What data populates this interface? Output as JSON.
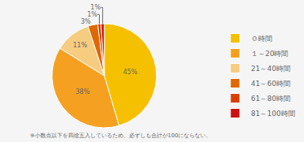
{
  "chart_data": {
    "type": "pie",
    "categories": [
      "０時間",
      "１～20時間",
      "21～40時間",
      "41～60時間",
      "61～80時間",
      "81～100時間"
    ],
    "values": [
      45,
      38,
      11,
      3,
      1,
      1
    ],
    "value_labels": [
      "45%",
      "38%",
      "11%",
      "3%",
      "1%",
      "1%"
    ],
    "colors": [
      "#F5C000",
      "#F5A020",
      "#F5CC80",
      "#E06800",
      "#D94000",
      "#CC1010"
    ],
    "data_labels": true,
    "legend": "right",
    "annotations": [
      "※小数点以下を四捨五入しているため、必ずしも合計が100にならない。"
    ]
  }
}
